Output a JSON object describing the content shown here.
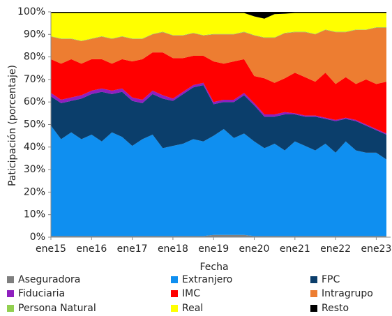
{
  "chart_data": {
    "type": "stacked_area",
    "x_label": "Fecha",
    "y_label": "Paticipación (porcentaje)",
    "categories": [
      "ene15",
      null,
      null,
      null,
      "ene16",
      null,
      null,
      null,
      "ene17",
      null,
      null,
      null,
      "ene18",
      null,
      null,
      null,
      "ene19",
      null,
      null,
      null,
      "ene20",
      null,
      null,
      null,
      "ene21",
      null,
      null,
      null,
      "ene22",
      null,
      null,
      null,
      "ene23",
      null
    ],
    "ylim": [
      0,
      100
    ],
    "yticks": [
      {
        "value": 0,
        "label": "0%"
      },
      {
        "value": 10,
        "label": "10%"
      },
      {
        "value": 20,
        "label": "20%"
      },
      {
        "value": 30,
        "label": "30%"
      },
      {
        "value": 40,
        "label": "40%"
      },
      {
        "value": 50,
        "label": "50%"
      },
      {
        "value": 60,
        "label": "60%"
      },
      {
        "value": 70,
        "label": "70%"
      },
      {
        "value": 80,
        "label": "80%"
      },
      {
        "value": 90,
        "label": "90%"
      },
      {
        "value": 100,
        "label": "100%"
      }
    ],
    "series": [
      {
        "name": "Aseguradora",
        "color": "#7f7f7f",
        "values": [
          0.5,
          0.5,
          0.5,
          0.5,
          0.5,
          0.5,
          0.5,
          0.5,
          0.5,
          0.5,
          0.5,
          0.5,
          0.5,
          0.5,
          0.5,
          0.5,
          1,
          1,
          1,
          1,
          0.5,
          0.5,
          0.5,
          0.5,
          0.5,
          0.5,
          0.5,
          0.5,
          0.5,
          0.5,
          0.5,
          0.5,
          0.5,
          0.5
        ]
      },
      {
        "name": "Extranjero",
        "color": "#0f8ff0",
        "values": [
          49,
          43,
          46,
          43,
          45,
          42,
          46,
          44,
          40,
          43,
          45,
          39,
          40,
          41,
          43,
          42,
          44,
          47,
          43,
          45,
          42,
          39,
          41,
          38,
          42,
          40,
          38,
          41,
          37,
          42,
          38,
          37,
          37,
          34
        ]
      },
      {
        "name": "FPC",
        "color": "#0b3e6b",
        "values": [
          13,
          16,
          14,
          18,
          18,
          22,
          17,
          20,
          20,
          16,
          18,
          22,
          20,
          22,
          23,
          25,
          14,
          12,
          16,
          17,
          16,
          14,
          12,
          16,
          12,
          13,
          15,
          11,
          14,
          10,
          13,
          12,
          10,
          11
        ]
      },
      {
        "name": "Fiduciaria",
        "color": "#8f1fbf",
        "values": [
          1.5,
          1.5,
          1.5,
          1.5,
          1.5,
          1.5,
          1.5,
          1.5,
          1.5,
          1.5,
          1.5,
          1.5,
          1,
          1,
          1,
          1,
          1,
          1,
          1,
          1,
          1,
          1,
          1,
          1,
          0.5,
          0.5,
          0.5,
          0.5,
          0.5,
          0.5,
          0.5,
          0.5,
          0.5,
          0.5
        ]
      },
      {
        "name": "IMC",
        "color": "#ff0000",
        "values": [
          15,
          16,
          17,
          14,
          14,
          13,
          12,
          13,
          16,
          18,
          17,
          19,
          18,
          15,
          13,
          12,
          18,
          16,
          17,
          15,
          12,
          16,
          14,
          15,
          18,
          17,
          15,
          20,
          16,
          18,
          16,
          20,
          20,
          23
        ]
      },
      {
        "name": "Intragrupo",
        "color": "#ed7d31",
        "values": [
          10,
          11,
          9,
          10,
          9,
          10,
          11,
          10,
          10,
          9,
          8,
          9,
          10,
          10,
          10,
          9,
          12,
          13,
          12,
          12,
          18,
          18,
          20,
          20,
          18,
          20,
          21,
          19,
          23,
          20,
          24,
          22,
          25,
          24
        ]
      },
      {
        "name": "Persona Natural",
        "color": "#92d050",
        "values": [
          0.2,
          0.2,
          0.2,
          0.2,
          0.2,
          0.2,
          0.2,
          0.2,
          0.2,
          0.2,
          0.2,
          0.2,
          0.2,
          0.2,
          0.2,
          0.2,
          0.2,
          0.2,
          0.2,
          0.2,
          0.2,
          0.2,
          0.2,
          0.2,
          0.2,
          0.2,
          0.2,
          0.2,
          0.2,
          0.2,
          0.2,
          0.2,
          0.2,
          0.2
        ]
      },
      {
        "name": "Real",
        "color": "#ffff00",
        "values": [
          10.3,
          11.3,
          11.3,
          12.3,
          11.3,
          10.3,
          11.3,
          10.3,
          11.3,
          11.3,
          9.3,
          8.3,
          9.8,
          9.8,
          8.8,
          9.8,
          9.3,
          9.3,
          9.3,
          8.3,
          8.3,
          8.3,
          10.3,
          8.5,
          8.3,
          8.3,
          9.3,
          7.3,
          8.3,
          8.3,
          7.3,
          7.3,
          6.3,
          6.3
        ]
      },
      {
        "name": "Resto",
        "color": "#000000",
        "values": [
          0.5,
          0.5,
          0.5,
          0.5,
          0.5,
          0.5,
          0.5,
          0.5,
          0.5,
          0.5,
          0.5,
          0.5,
          0.5,
          0.5,
          0.5,
          0.5,
          0.5,
          0.5,
          0.5,
          0.5,
          2,
          3,
          1,
          0.8,
          0.5,
          0.5,
          0.5,
          0.5,
          0.5,
          0.5,
          0.5,
          0.5,
          0.5,
          0.5
        ]
      }
    ]
  }
}
